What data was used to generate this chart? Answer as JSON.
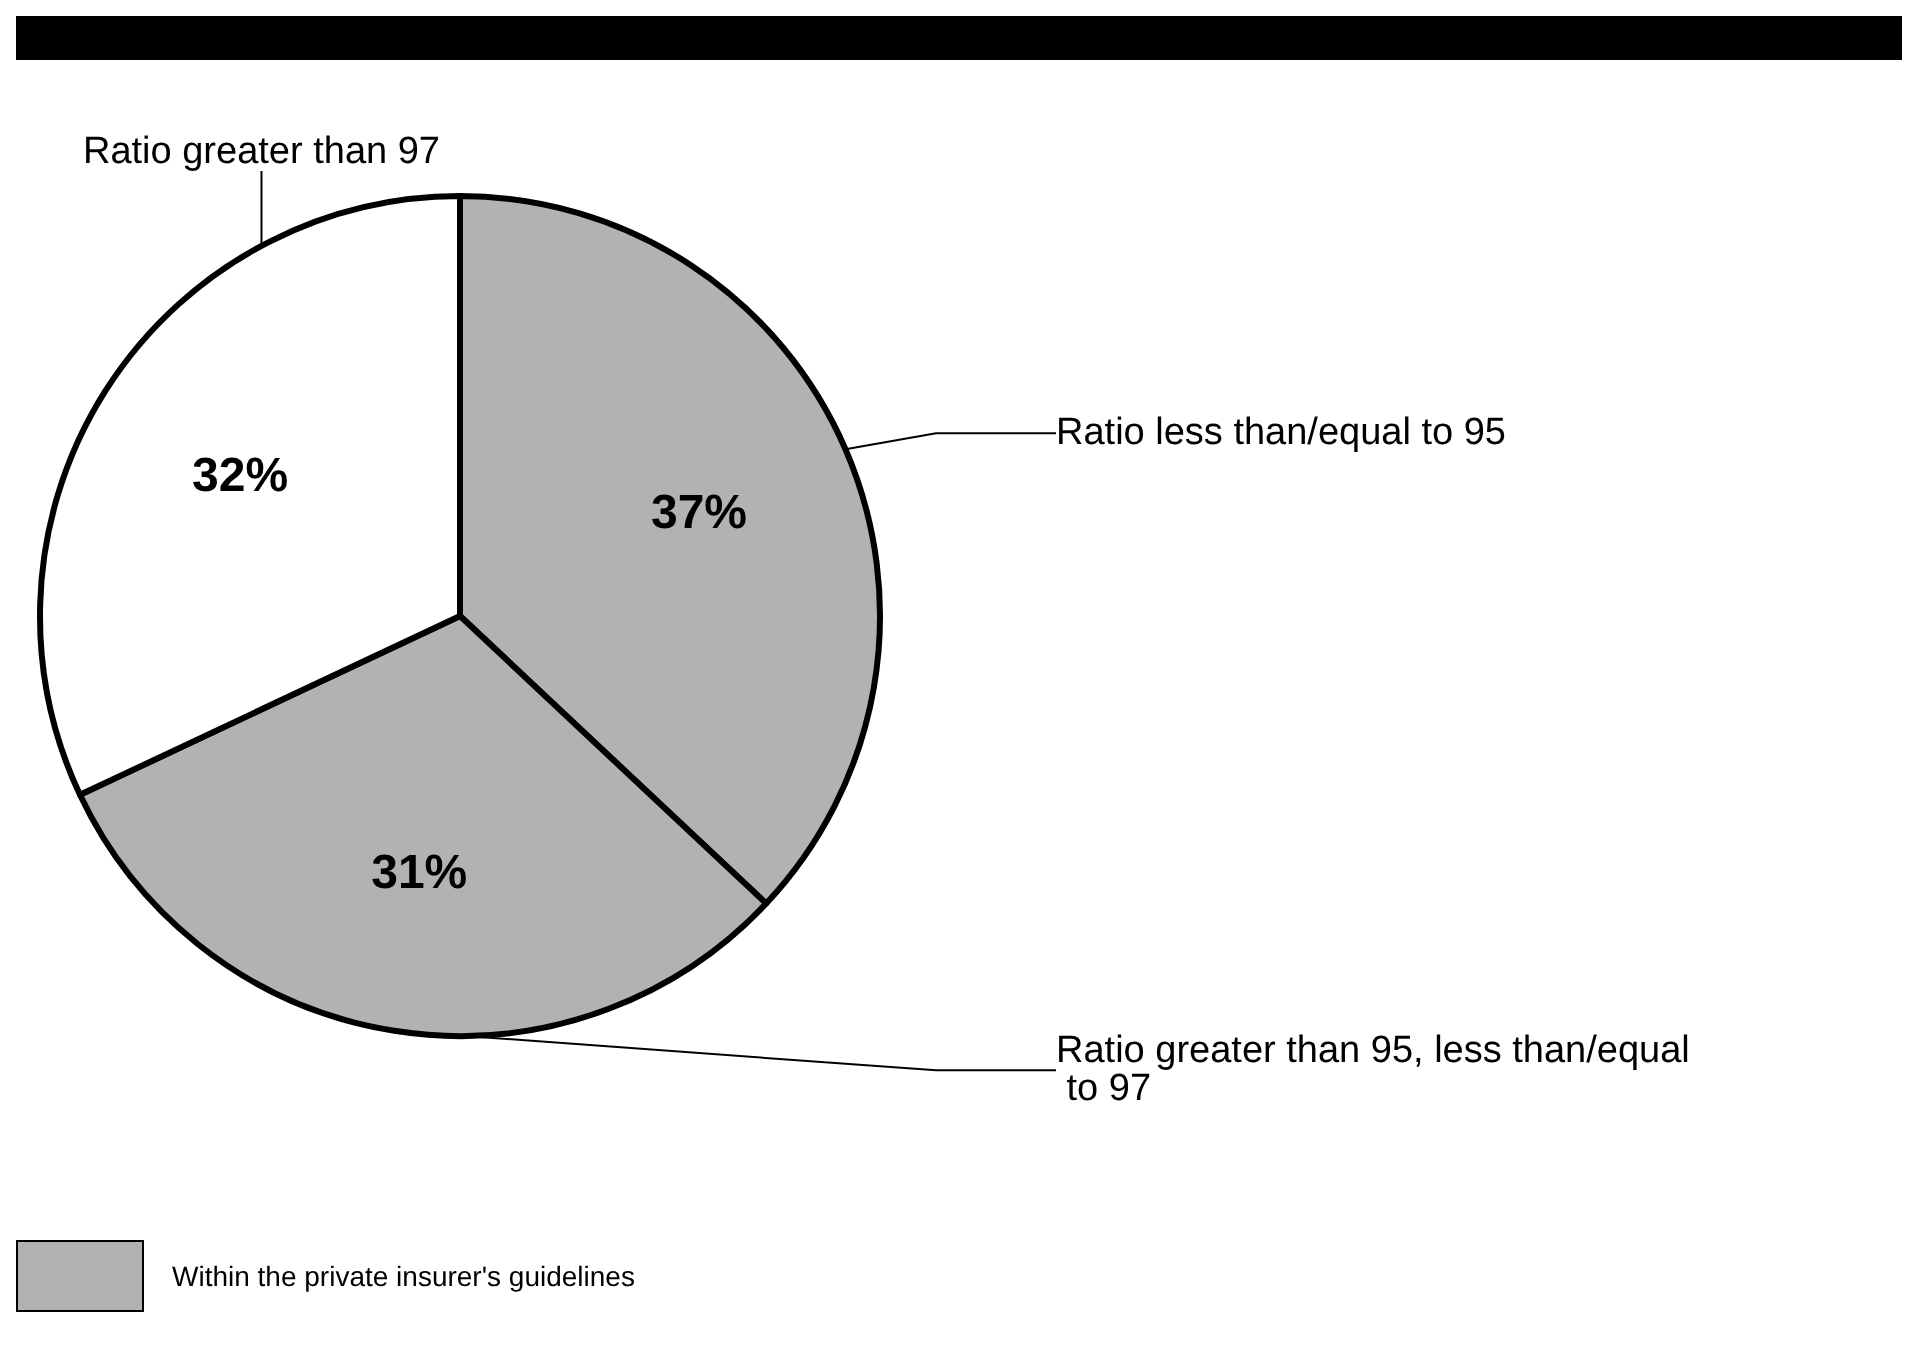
{
  "chart_data": {
    "type": "pie",
    "categories": [
      "Ratio less than/equal to 95",
      "Ratio greater than 95, less than/equal to 97",
      "Ratio greater than 97"
    ],
    "values": [
      37,
      31,
      32
    ],
    "value_labels": [
      "37%",
      "31%",
      "32%"
    ],
    "colors": [
      "#b2b2b2",
      "#b2b2b2",
      "#ffffff"
    ],
    "annotations": [
      "Within the private insurer's guidelines"
    ],
    "legend": false
  }
}
